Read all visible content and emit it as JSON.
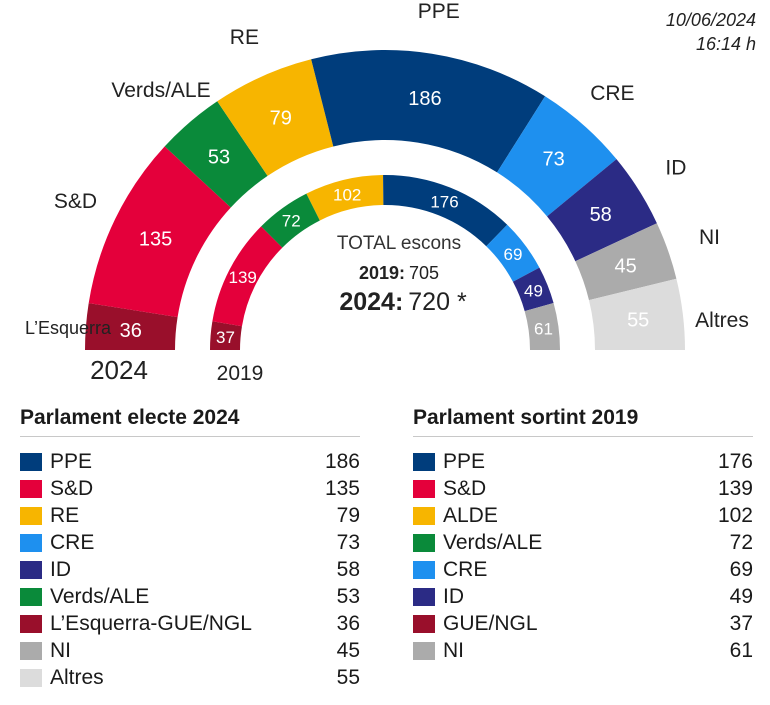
{
  "header": {
    "date": "10/06/2024",
    "time": "16:14 h"
  },
  "center": {
    "title": "TOTAL escons",
    "line_2019_label": "2019:",
    "line_2019_value": "705",
    "line_2024_label": "2024:",
    "line_2024_value": "720 *"
  },
  "chart_data": {
    "type": "hemicycle",
    "rings": [
      {
        "name": "2024",
        "total": 720,
        "segments": [
          {
            "label": "L’Esquerra",
            "value": 36,
            "color": "#990f2b"
          },
          {
            "label": "S&D",
            "value": 135,
            "color": "#e4003b"
          },
          {
            "label": "Verds/ALE",
            "value": 53,
            "color": "#0a8a3a"
          },
          {
            "label": "RE",
            "value": 79,
            "color": "#f7b500"
          },
          {
            "label": "PPE",
            "value": 186,
            "color": "#003d7c"
          },
          {
            "label": "CRE",
            "value": 73,
            "color": "#1e90ef"
          },
          {
            "label": "ID",
            "value": 58,
            "color": "#2b2b85"
          },
          {
            "label": "NI",
            "value": 45,
            "color": "#ababab"
          },
          {
            "label": "Altres",
            "value": 55,
            "color": "#dcdcdc"
          }
        ]
      },
      {
        "name": "2019",
        "total": 705,
        "segments": [
          {
            "label": "GUE/NGL",
            "value": 37,
            "color": "#990f2b"
          },
          {
            "label": "S&D",
            "value": 139,
            "color": "#e4003b"
          },
          {
            "label": "Verds/ALE",
            "value": 72,
            "color": "#0a8a3a"
          },
          {
            "label": "ALDE",
            "value": 102,
            "color": "#f7b500"
          },
          {
            "label": "PPE",
            "value": 176,
            "color": "#003d7c"
          },
          {
            "label": "CRE",
            "value": 69,
            "color": "#1e90ef"
          },
          {
            "label": "ID",
            "value": 49,
            "color": "#2b2b85"
          },
          {
            "label": "NI",
            "value": 61,
            "color": "#ababab"
          }
        ]
      }
    ]
  },
  "tables": {
    "t2024": {
      "title": "Parlament electe 2024",
      "rows": [
        {
          "name": "PPE",
          "value": "186",
          "color": "#003d7c"
        },
        {
          "name": "S&D",
          "value": "135",
          "color": "#e4003b"
        },
        {
          "name": "RE",
          "value": "79",
          "color": "#f7b500"
        },
        {
          "name": "CRE",
          "value": "73",
          "color": "#1e90ef"
        },
        {
          "name": "ID",
          "value": "58",
          "color": "#2b2b85"
        },
        {
          "name": "Verds/ALE",
          "value": "53",
          "color": "#0a8a3a"
        },
        {
          "name": "L’Esquerra-GUE/NGL",
          "value": "36",
          "color": "#990f2b"
        },
        {
          "name": "NI",
          "value": "45",
          "color": "#ababab"
        },
        {
          "name": "Altres",
          "value": "55",
          "color": "#dcdcdc"
        }
      ]
    },
    "t2019": {
      "title": "Parlament sortint 2019",
      "rows": [
        {
          "name": "PPE",
          "value": "176",
          "color": "#003d7c"
        },
        {
          "name": "S&D",
          "value": "139",
          "color": "#e4003b"
        },
        {
          "name": "ALDE",
          "value": "102",
          "color": "#f7b500"
        },
        {
          "name": "Verds/ALE",
          "value": "72",
          "color": "#0a8a3a"
        },
        {
          "name": "CRE",
          "value": "69",
          "color": "#1e90ef"
        },
        {
          "name": "ID",
          "value": "49",
          "color": "#2b2b85"
        },
        {
          "name": "GUE/NGL",
          "value": "37",
          "color": "#990f2b"
        },
        {
          "name": "NI",
          "value": "61",
          "color": "#ababab"
        }
      ]
    }
  }
}
